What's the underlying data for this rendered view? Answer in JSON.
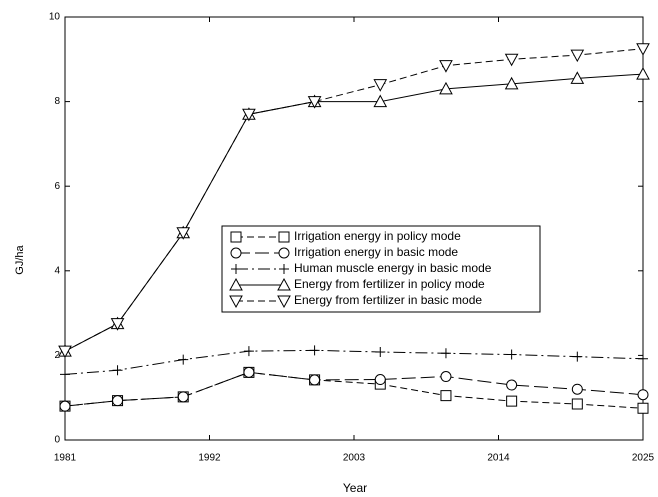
{
  "chart_data": {
    "type": "line",
    "xlabel": "Year",
    "ylabel": "GJ/ha",
    "x": [
      1981,
      1985,
      1990,
      1995,
      2000,
      2005,
      2010,
      2015,
      2020,
      2025
    ],
    "xlim": [
      1981,
      2025
    ],
    "xticks": [
      1981,
      1992,
      2003,
      2014,
      2025
    ],
    "ylim": [
      0,
      10
    ],
    "yticks": [
      0,
      2,
      4,
      6,
      8,
      10
    ],
    "legend": "center",
    "series": [
      {
        "name": "Irrigation energy in policy mode",
        "color": "#000000",
        "marker": "square",
        "linestyle": "dashed",
        "values": [
          0.8,
          0.93,
          1.02,
          1.6,
          1.42,
          1.32,
          1.05,
          0.92,
          0.85,
          0.75
        ]
      },
      {
        "name": "Irrigation energy in basic mode",
        "color": "#000000",
        "marker": "circle",
        "linestyle": "longdash",
        "values": [
          0.8,
          0.93,
          1.02,
          1.6,
          1.42,
          1.43,
          1.5,
          1.3,
          1.2,
          1.07
        ]
      },
      {
        "name": "Human muscle energy in basic mode",
        "color": "#000000",
        "marker": "plus",
        "linestyle": "dashdot",
        "values": [
          1.55,
          1.65,
          1.9,
          2.1,
          2.12,
          2.08,
          2.05,
          2.02,
          1.97,
          1.92
        ]
      },
      {
        "name": "Energy from fertilizer in policy mode",
        "color": "#000000",
        "marker": "triangle-up",
        "linestyle": "solid",
        "values": [
          2.1,
          2.75,
          4.9,
          7.7,
          8.0,
          8.0,
          8.3,
          8.42,
          8.55,
          8.65
        ]
      },
      {
        "name": "Energy from fertilizer in basic mode",
        "color": "#000000",
        "marker": "triangle-down",
        "linestyle": "dashed",
        "values": [
          2.1,
          2.75,
          4.9,
          7.7,
          8.0,
          8.4,
          8.85,
          9.0,
          9.1,
          9.25
        ]
      }
    ]
  }
}
